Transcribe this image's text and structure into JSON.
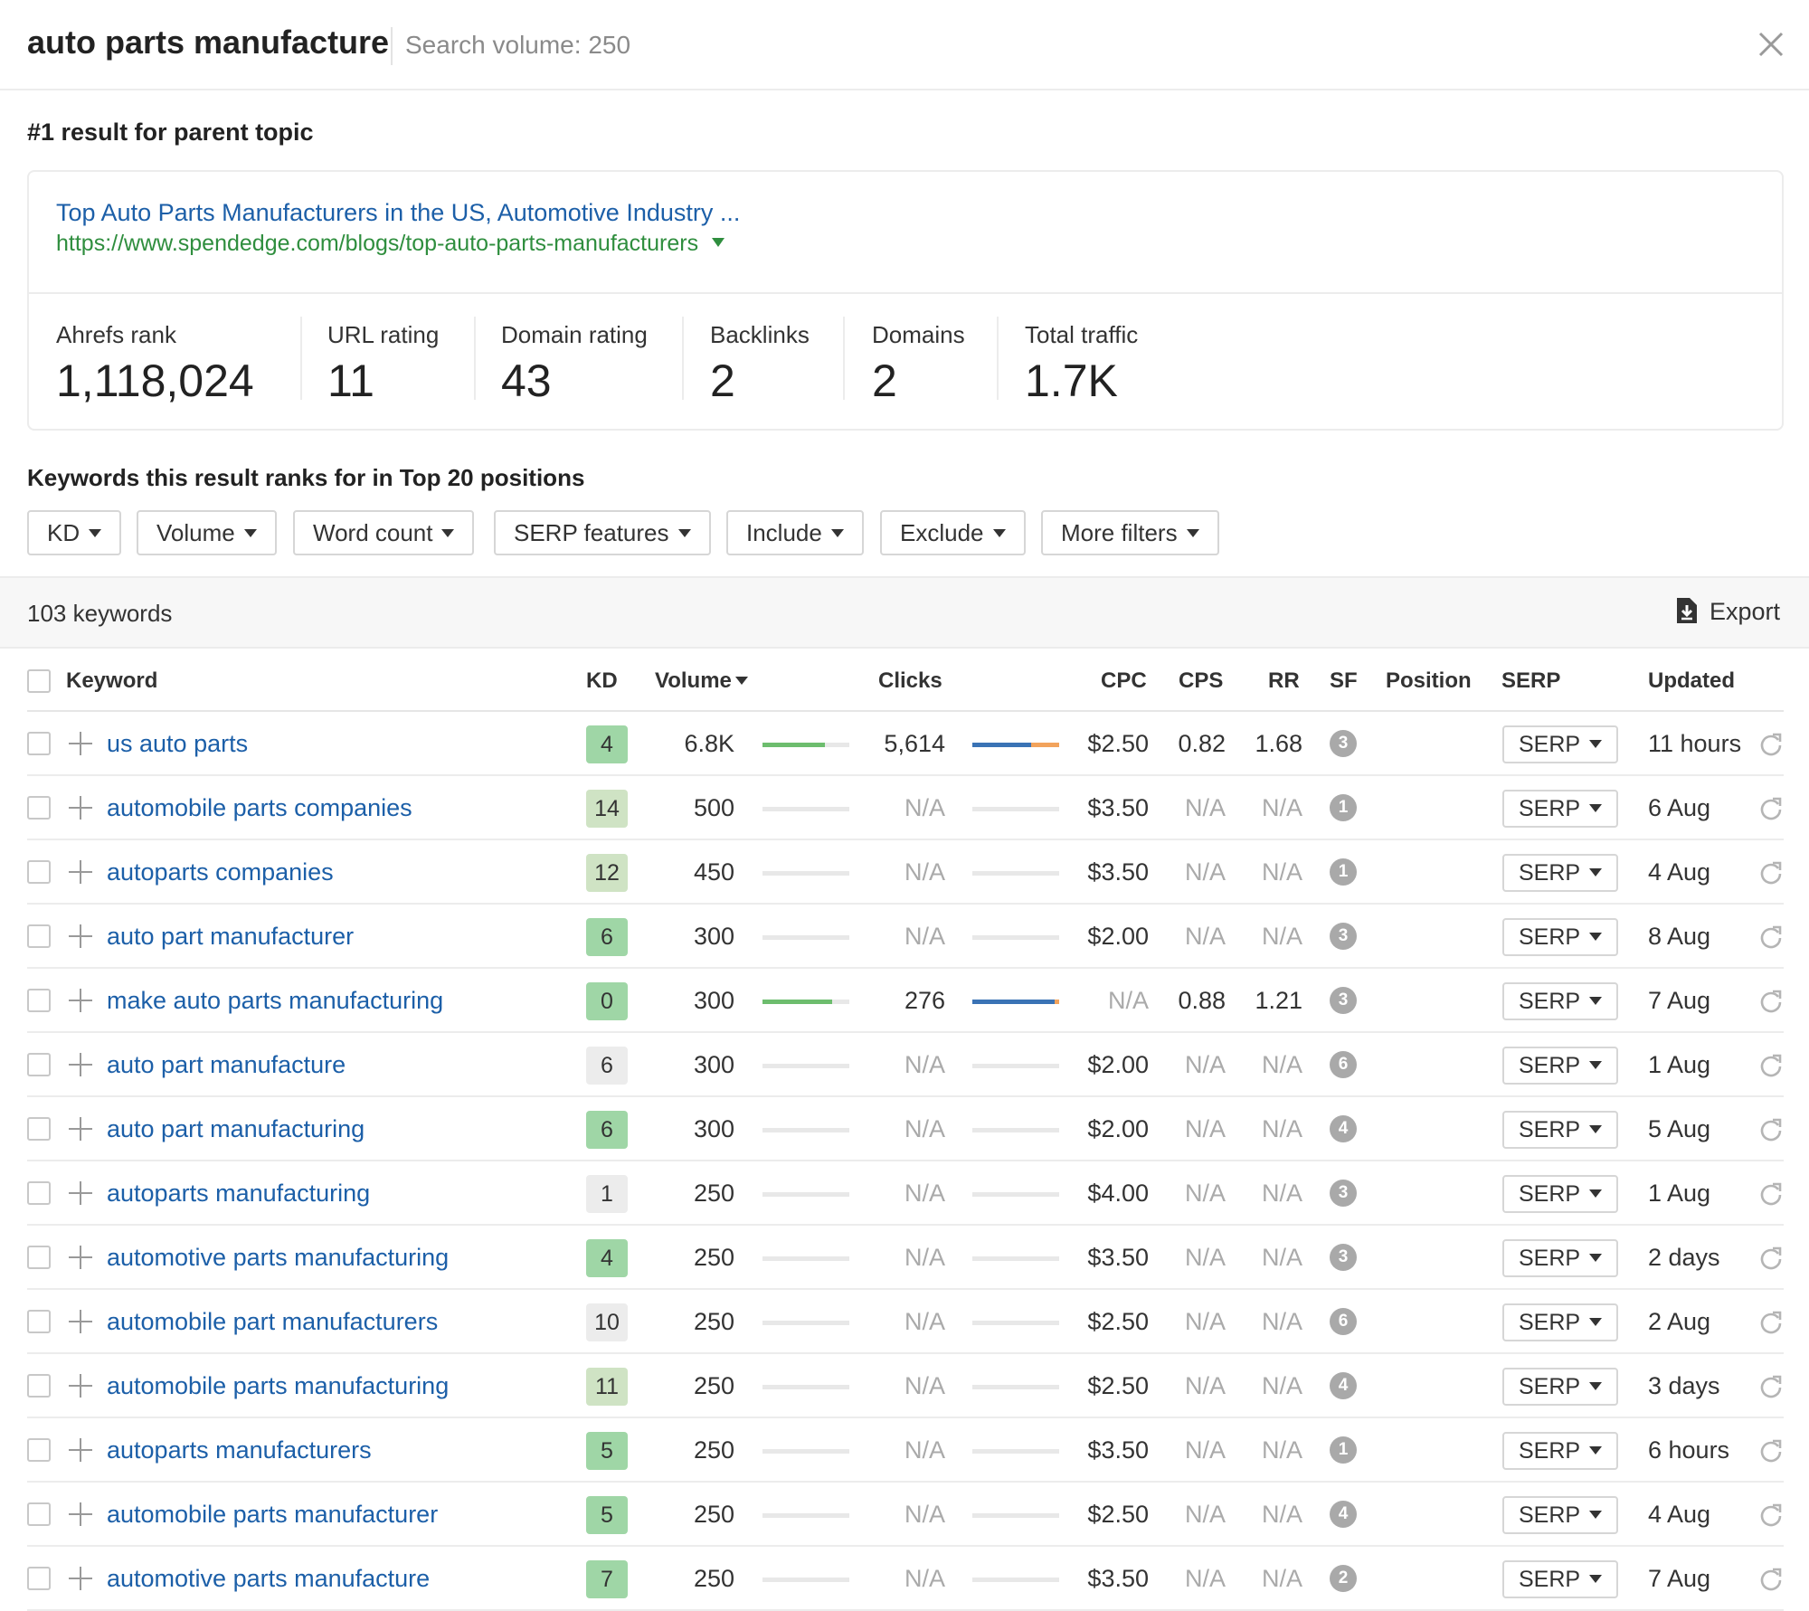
{
  "header": {
    "title": "auto parts manufacture",
    "search_volume": "Search volume: 250"
  },
  "parent_topic": {
    "heading": "#1 result for parent topic",
    "title": "Top Auto Parts Manufacturers in the US, Automotive Industry ...",
    "url": "https://www.spendedge.com/blogs/top-auto-parts-manufacturers",
    "metrics": [
      {
        "label": "Ahrefs rank",
        "value": "1,118,024"
      },
      {
        "label": "URL rating",
        "value": "11"
      },
      {
        "label": "Domain rating",
        "value": "43"
      },
      {
        "label": "Backlinks",
        "value": "2"
      },
      {
        "label": "Domains",
        "value": "2"
      },
      {
        "label": "Total traffic",
        "value": "1.7K"
      }
    ]
  },
  "keywords_section": {
    "heading": "Keywords this result ranks for in Top 20 positions",
    "filters": [
      "KD",
      "Volume",
      "Word count",
      "SERP features",
      "Include",
      "Exclude",
      "More filters"
    ],
    "count": "103 keywords",
    "export_label": "Export"
  },
  "table": {
    "headers": {
      "keyword": "Keyword",
      "kd": "KD",
      "volume": "Volume",
      "clicks": "Clicks",
      "cpc": "CPC",
      "cps": "CPS",
      "rr": "RR",
      "sf": "SF",
      "position": "Position",
      "serp": "SERP",
      "updated": "Updated"
    },
    "serp_label": "SERP",
    "rows": [
      {
        "keyword": "us auto parts",
        "kd": "4",
        "kd_color": "#9fd6a6",
        "volume": "6.8K",
        "vol_fill": 0.72,
        "clicks": "5,614",
        "clicks_fill": [
          0.68,
          0.32
        ],
        "cpc": "$2.50",
        "cps": "0.82",
        "rr": "1.68",
        "sf": "3",
        "updated": "11 hours"
      },
      {
        "keyword": "automobile parts companies",
        "kd": "14",
        "kd_color": "#cfe3c4",
        "volume": "500",
        "vol_fill": 0,
        "clicks": "N/A",
        "clicks_fill": [
          0,
          0
        ],
        "cpc": "$3.50",
        "cps": "N/A",
        "rr": "N/A",
        "sf": "1",
        "updated": "6 Aug"
      },
      {
        "keyword": "autoparts companies",
        "kd": "12",
        "kd_color": "#cfe3c4",
        "volume": "450",
        "vol_fill": 0,
        "clicks": "N/A",
        "clicks_fill": [
          0,
          0
        ],
        "cpc": "$3.50",
        "cps": "N/A",
        "rr": "N/A",
        "sf": "1",
        "updated": "4 Aug"
      },
      {
        "keyword": "auto part manufacturer",
        "kd": "6",
        "kd_color": "#9fd6a6",
        "volume": "300",
        "vol_fill": 0,
        "clicks": "N/A",
        "clicks_fill": [
          0,
          0
        ],
        "cpc": "$2.00",
        "cps": "N/A",
        "rr": "N/A",
        "sf": "3",
        "updated": "8 Aug"
      },
      {
        "keyword": "make auto parts manufacturing",
        "kd": "0",
        "kd_color": "#9fd6a6",
        "volume": "300",
        "vol_fill": 0.8,
        "clicks": "276",
        "clicks_fill": [
          0.95,
          0.05
        ],
        "cpc": "N/A",
        "cps": "0.88",
        "rr": "1.21",
        "sf": "3",
        "updated": "7 Aug"
      },
      {
        "keyword": "auto part manufacture",
        "kd": "6",
        "kd_color": "#ececec",
        "volume": "300",
        "vol_fill": 0,
        "clicks": "N/A",
        "clicks_fill": [
          0,
          0
        ],
        "cpc": "$2.00",
        "cps": "N/A",
        "rr": "N/A",
        "sf": "6",
        "updated": "1 Aug"
      },
      {
        "keyword": "auto part manufacturing",
        "kd": "6",
        "kd_color": "#9fd6a6",
        "volume": "300",
        "vol_fill": 0,
        "clicks": "N/A",
        "clicks_fill": [
          0,
          0
        ],
        "cpc": "$2.00",
        "cps": "N/A",
        "rr": "N/A",
        "sf": "4",
        "updated": "5 Aug"
      },
      {
        "keyword": "autoparts manufacturing",
        "kd": "1",
        "kd_color": "#ececec",
        "volume": "250",
        "vol_fill": 0,
        "clicks": "N/A",
        "clicks_fill": [
          0,
          0
        ],
        "cpc": "$4.00",
        "cps": "N/A",
        "rr": "N/A",
        "sf": "3",
        "updated": "1 Aug"
      },
      {
        "keyword": "automotive parts manufacturing",
        "kd": "4",
        "kd_color": "#9fd6a6",
        "volume": "250",
        "vol_fill": 0,
        "clicks": "N/A",
        "clicks_fill": [
          0,
          0
        ],
        "cpc": "$3.50",
        "cps": "N/A",
        "rr": "N/A",
        "sf": "3",
        "updated": "2 days"
      },
      {
        "keyword": "automobile part manufacturers",
        "kd": "10",
        "kd_color": "#ececec",
        "volume": "250",
        "vol_fill": 0,
        "clicks": "N/A",
        "clicks_fill": [
          0,
          0
        ],
        "cpc": "$2.50",
        "cps": "N/A",
        "rr": "N/A",
        "sf": "6",
        "updated": "2 Aug"
      },
      {
        "keyword": "automobile parts manufacturing",
        "kd": "11",
        "kd_color": "#cfe3c4",
        "volume": "250",
        "vol_fill": 0,
        "clicks": "N/A",
        "clicks_fill": [
          0,
          0
        ],
        "cpc": "$2.50",
        "cps": "N/A",
        "rr": "N/A",
        "sf": "4",
        "updated": "3 days"
      },
      {
        "keyword": "autoparts manufacturers",
        "kd": "5",
        "kd_color": "#9fd6a6",
        "volume": "250",
        "vol_fill": 0,
        "clicks": "N/A",
        "clicks_fill": [
          0,
          0
        ],
        "cpc": "$3.50",
        "cps": "N/A",
        "rr": "N/A",
        "sf": "1",
        "updated": "6 hours"
      },
      {
        "keyword": "automobile parts manufacturer",
        "kd": "5",
        "kd_color": "#9fd6a6",
        "volume": "250",
        "vol_fill": 0,
        "clicks": "N/A",
        "clicks_fill": [
          0,
          0
        ],
        "cpc": "$2.50",
        "cps": "N/A",
        "rr": "N/A",
        "sf": "4",
        "updated": "4 Aug"
      },
      {
        "keyword": "automotive parts manufacture",
        "kd": "7",
        "kd_color": "#9fd6a6",
        "volume": "250",
        "vol_fill": 0,
        "clicks": "N/A",
        "clicks_fill": [
          0,
          0
        ],
        "cpc": "$3.50",
        "cps": "N/A",
        "rr": "N/A",
        "sf": "2",
        "updated": "7 Aug"
      }
    ]
  },
  "colors": {
    "link": "#1c5fa8",
    "url": "#2f8e3e",
    "bar_green": "#6dbd6e",
    "bar_blue": "#3a73b5",
    "bar_orange": "#f2a35c"
  }
}
